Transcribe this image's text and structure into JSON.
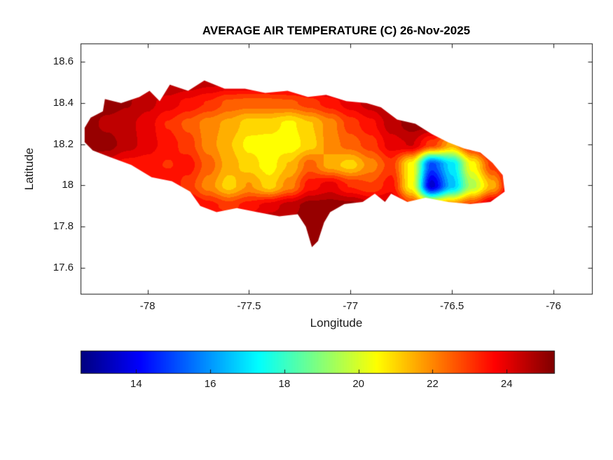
{
  "chart_data": {
    "type": "heatmap",
    "title": "AVERAGE AIR TEMPERATURE (C) 26-Nov-2025",
    "xlabel": "Longitude",
    "ylabel": "Latitude",
    "region_shape": "Jamaica",
    "colormap": "jet",
    "colorbar_orientation": "horizontal",
    "xlim": [
      -78.33,
      -75.81
    ],
    "ylim": [
      17.47,
      18.69
    ],
    "caxis": [
      12.5,
      25.3
    ],
    "xticks": {
      "values": [
        -78,
        -77.5,
        -77,
        -76.5,
        -76
      ],
      "labels": [
        "-78",
        "-77.5",
        "-77",
        "-76.5",
        "-76"
      ]
    },
    "yticks": {
      "values": [
        17.6,
        17.8,
        18,
        18.2,
        18.4,
        18.6
      ],
      "labels": [
        "17.6",
        "17.8",
        "18",
        "18.2",
        "18.4",
        "18.6"
      ]
    },
    "colorbar_ticks": {
      "values": [
        14,
        16,
        18,
        20,
        22,
        24
      ],
      "labels": [
        "14",
        "16",
        "18",
        "20",
        "22",
        "24"
      ]
    },
    "outline_lonlat": [
      [
        -78.31,
        18.28
      ],
      [
        -78.28,
        18.33
      ],
      [
        -78.22,
        18.36
      ],
      [
        -78.21,
        18.42
      ],
      [
        -78.13,
        18.4
      ],
      [
        -78.04,
        18.43
      ],
      [
        -77.99,
        18.46
      ],
      [
        -77.94,
        18.41
      ],
      [
        -77.89,
        18.49
      ],
      [
        -77.8,
        18.46
      ],
      [
        -77.72,
        18.51
      ],
      [
        -77.62,
        18.47
      ],
      [
        -77.52,
        18.47
      ],
      [
        -77.42,
        18.45
      ],
      [
        -77.31,
        18.46
      ],
      [
        -77.21,
        18.43
      ],
      [
        -77.12,
        18.44
      ],
      [
        -77.02,
        18.41
      ],
      [
        -76.92,
        18.4
      ],
      [
        -76.85,
        18.38
      ],
      [
        -76.77,
        18.32
      ],
      [
        -76.68,
        18.3
      ],
      [
        -76.6,
        18.25
      ],
      [
        -76.52,
        18.21
      ],
      [
        -76.44,
        18.18
      ],
      [
        -76.36,
        18.16
      ],
      [
        -76.3,
        18.11
      ],
      [
        -76.25,
        18.05
      ],
      [
        -76.24,
        17.97
      ],
      [
        -76.31,
        17.92
      ],
      [
        -76.41,
        17.91
      ],
      [
        -76.52,
        17.92
      ],
      [
        -76.63,
        17.94
      ],
      [
        -76.72,
        17.92
      ],
      [
        -76.8,
        17.96
      ],
      [
        -76.83,
        17.92
      ],
      [
        -76.88,
        17.96
      ],
      [
        -76.94,
        17.92
      ],
      [
        -77.03,
        17.91
      ],
      [
        -77.1,
        17.87
      ],
      [
        -77.13,
        17.82
      ],
      [
        -77.16,
        17.73
      ],
      [
        -77.19,
        17.7
      ],
      [
        -77.22,
        17.8
      ],
      [
        -77.26,
        17.86
      ],
      [
        -77.35,
        17.85
      ],
      [
        -77.46,
        17.87
      ],
      [
        -77.56,
        17.89
      ],
      [
        -77.66,
        17.87
      ],
      [
        -77.74,
        17.9
      ],
      [
        -77.79,
        17.97
      ],
      [
        -77.88,
        18.02
      ],
      [
        -77.98,
        18.04
      ],
      [
        -78.08,
        18.1
      ],
      [
        -78.19,
        18.14
      ],
      [
        -78.27,
        18.17
      ],
      [
        -78.31,
        18.21
      ]
    ],
    "grid": {
      "lon": [
        -78.4,
        -78.3,
        -78.2,
        -78.1,
        -78.0,
        -77.9,
        -77.8,
        -77.7,
        -77.6,
        -77.5,
        -77.4,
        -77.3,
        -77.2,
        -77.1,
        -77.0,
        -76.9,
        -76.8,
        -76.7,
        -76.6,
        -76.5,
        -76.4,
        -76.3,
        -76.2
      ],
      "lat": [
        17.7,
        17.8,
        17.9,
        18.0,
        18.1,
        18.2,
        18.3,
        18.4,
        18.5,
        18.6
      ],
      "temperature": [
        [
          25,
          25,
          25,
          25,
          25,
          25,
          25,
          25,
          25,
          25,
          25,
          25,
          25,
          25,
          25,
          25,
          25,
          25,
          25,
          25,
          25,
          25,
          25
        ],
        [
          25,
          25,
          25,
          25,
          25,
          25,
          25,
          24.5,
          24.5,
          24.5,
          25,
          25,
          25,
          25,
          25,
          25,
          25,
          24.5,
          24,
          24,
          24.5,
          25,
          25
        ],
        [
          25,
          25,
          25,
          25,
          25,
          24.5,
          24,
          23.5,
          23,
          23.5,
          24,
          24.5,
          25,
          25,
          25,
          24.5,
          24.5,
          23,
          21.5,
          22,
          23,
          24.5,
          25
        ],
        [
          25,
          25,
          24.5,
          24,
          23.5,
          23.8,
          23,
          22,
          21,
          21.8,
          21,
          22,
          23.5,
          24,
          23.2,
          22.8,
          23.5,
          20.5,
          13.5,
          16.5,
          19.5,
          21.5,
          24.5
        ],
        [
          25,
          24.5,
          24,
          23.5,
          23.5,
          23.2,
          23.5,
          22.5,
          21.5,
          21,
          20.5,
          21.3,
          22.5,
          21.5,
          21,
          22,
          23,
          20.5,
          15,
          17,
          20.5,
          23,
          24.5
        ],
        [
          25,
          25,
          25,
          24.5,
          24,
          23.5,
          23,
          22,
          21.3,
          20.6,
          20.5,
          20.4,
          21,
          22,
          22.5,
          23,
          24,
          24.3,
          23,
          21.5,
          23.5,
          24.5,
          25
        ],
        [
          25,
          25,
          24.6,
          24.4,
          24,
          23.2,
          22.6,
          22,
          21.6,
          21,
          21,
          20.6,
          21.2,
          22,
          23,
          23.6,
          24.5,
          25,
          25,
          25,
          25,
          25,
          25
        ],
        [
          25,
          25,
          25,
          24.8,
          24.4,
          24,
          23.6,
          23.2,
          22.6,
          22.5,
          22.5,
          22.6,
          23,
          23.5,
          24,
          24.5,
          25,
          25,
          25,
          25,
          25,
          25,
          25
        ],
        [
          25,
          25,
          25,
          25,
          25,
          24.8,
          24.6,
          24.4,
          24.3,
          24.3,
          24.4,
          24.5,
          24.6,
          24.8,
          25,
          25,
          25,
          25,
          25,
          25,
          25,
          25,
          25
        ],
        [
          25,
          25,
          25,
          25,
          25,
          25,
          25,
          25,
          25,
          25,
          25,
          25,
          25,
          25,
          25,
          25,
          25,
          25,
          25,
          25,
          25,
          25,
          25
        ]
      ]
    }
  },
  "layout_colors": {
    "background": "#ffffff",
    "axis": "#1a1a1a",
    "title_text": "#000000",
    "low_color": "#00008f",
    "high_color": "#8f0000"
  }
}
